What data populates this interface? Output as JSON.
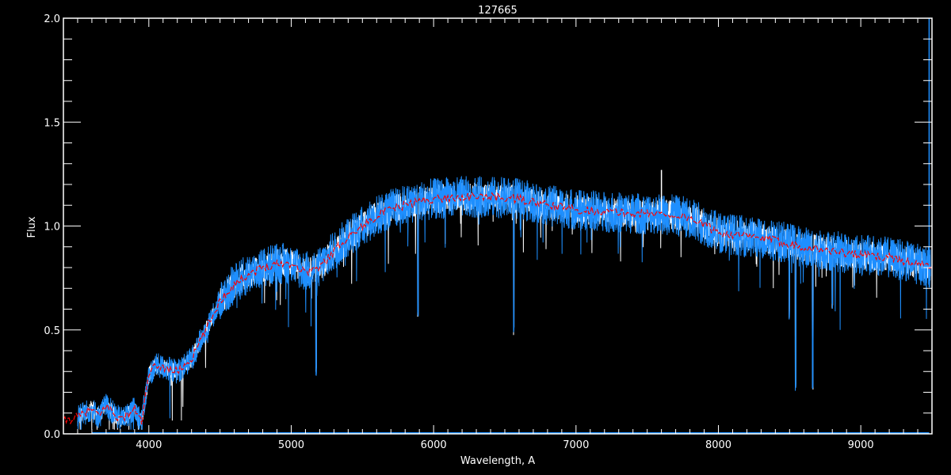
{
  "chart_data": {
    "type": "line",
    "title": "127665",
    "xlabel": "Wavelength, A",
    "ylabel": "Flux",
    "xlim": [
      3400,
      9500
    ],
    "ylim": [
      0,
      2.0
    ],
    "x_ticks": [
      4000,
      5000,
      6000,
      7000,
      8000,
      9000
    ],
    "x_tick_labels": [
      "4000",
      "5000",
      "6000",
      "7000",
      "8000",
      "9000"
    ],
    "y_ticks": [
      0,
      0.5,
      1.0,
      1.5,
      2.0
    ],
    "y_tick_labels": [
      "0.0",
      "0.5",
      "1.0",
      "1.5",
      "2.0"
    ],
    "grid": false,
    "colors": {
      "background": "#000000",
      "axes": "#ffffff",
      "observed": "#ffffff",
      "model": "#1e8fff",
      "smoothed": "#ff0000"
    },
    "series": [
      {
        "color": "#ffffff",
        "style": "noisy spectrum"
      },
      {
        "color": "#1e8fff",
        "style": "noisy spectrum"
      },
      {
        "color": "#ff0000",
        "style": "dashed smoothed continuum"
      }
    ],
    "continuum": [
      [
        3400,
        0.06
      ],
      [
        3500,
        0.08
      ],
      [
        3600,
        0.12
      ],
      [
        3650,
        0.08
      ],
      [
        3700,
        0.14
      ],
      [
        3750,
        0.1
      ],
      [
        3800,
        0.07
      ],
      [
        3850,
        0.09
      ],
      [
        3900,
        0.12
      ],
      [
        3950,
        0.06
      ],
      [
        4000,
        0.28
      ],
      [
        4050,
        0.33
      ],
      [
        4100,
        0.32
      ],
      [
        4200,
        0.3
      ],
      [
        4300,
        0.36
      ],
      [
        4400,
        0.5
      ],
      [
        4500,
        0.64
      ],
      [
        4600,
        0.72
      ],
      [
        4700,
        0.77
      ],
      [
        4800,
        0.8
      ],
      [
        4900,
        0.82
      ],
      [
        5000,
        0.82
      ],
      [
        5100,
        0.78
      ],
      [
        5200,
        0.8
      ],
      [
        5300,
        0.88
      ],
      [
        5400,
        0.95
      ],
      [
        5500,
        1.0
      ],
      [
        5600,
        1.05
      ],
      [
        5700,
        1.08
      ],
      [
        5800,
        1.1
      ],
      [
        5900,
        1.12
      ],
      [
        6000,
        1.13
      ],
      [
        6200,
        1.14
      ],
      [
        6400,
        1.14
      ],
      [
        6600,
        1.13
      ],
      [
        6800,
        1.1
      ],
      [
        7000,
        1.08
      ],
      [
        7200,
        1.07
      ],
      [
        7400,
        1.06
      ],
      [
        7600,
        1.06
      ],
      [
        7800,
        1.04
      ],
      [
        8000,
        0.97
      ],
      [
        8200,
        0.95
      ],
      [
        8400,
        0.93
      ],
      [
        8600,
        0.9
      ],
      [
        8800,
        0.88
      ],
      [
        9000,
        0.86
      ],
      [
        9200,
        0.85
      ],
      [
        9500,
        0.8
      ]
    ],
    "absorption_lines": [
      [
        5175,
        0.28
      ],
      [
        5890,
        0.55
      ],
      [
        6563,
        0.47
      ],
      [
        8498,
        0.55
      ],
      [
        8542,
        0.2
      ],
      [
        8662,
        0.2
      ],
      [
        8800,
        0.6
      ]
    ],
    "emission_spikes": [
      [
        7600,
        1.27
      ],
      [
        9480,
        2.0
      ]
    ]
  }
}
